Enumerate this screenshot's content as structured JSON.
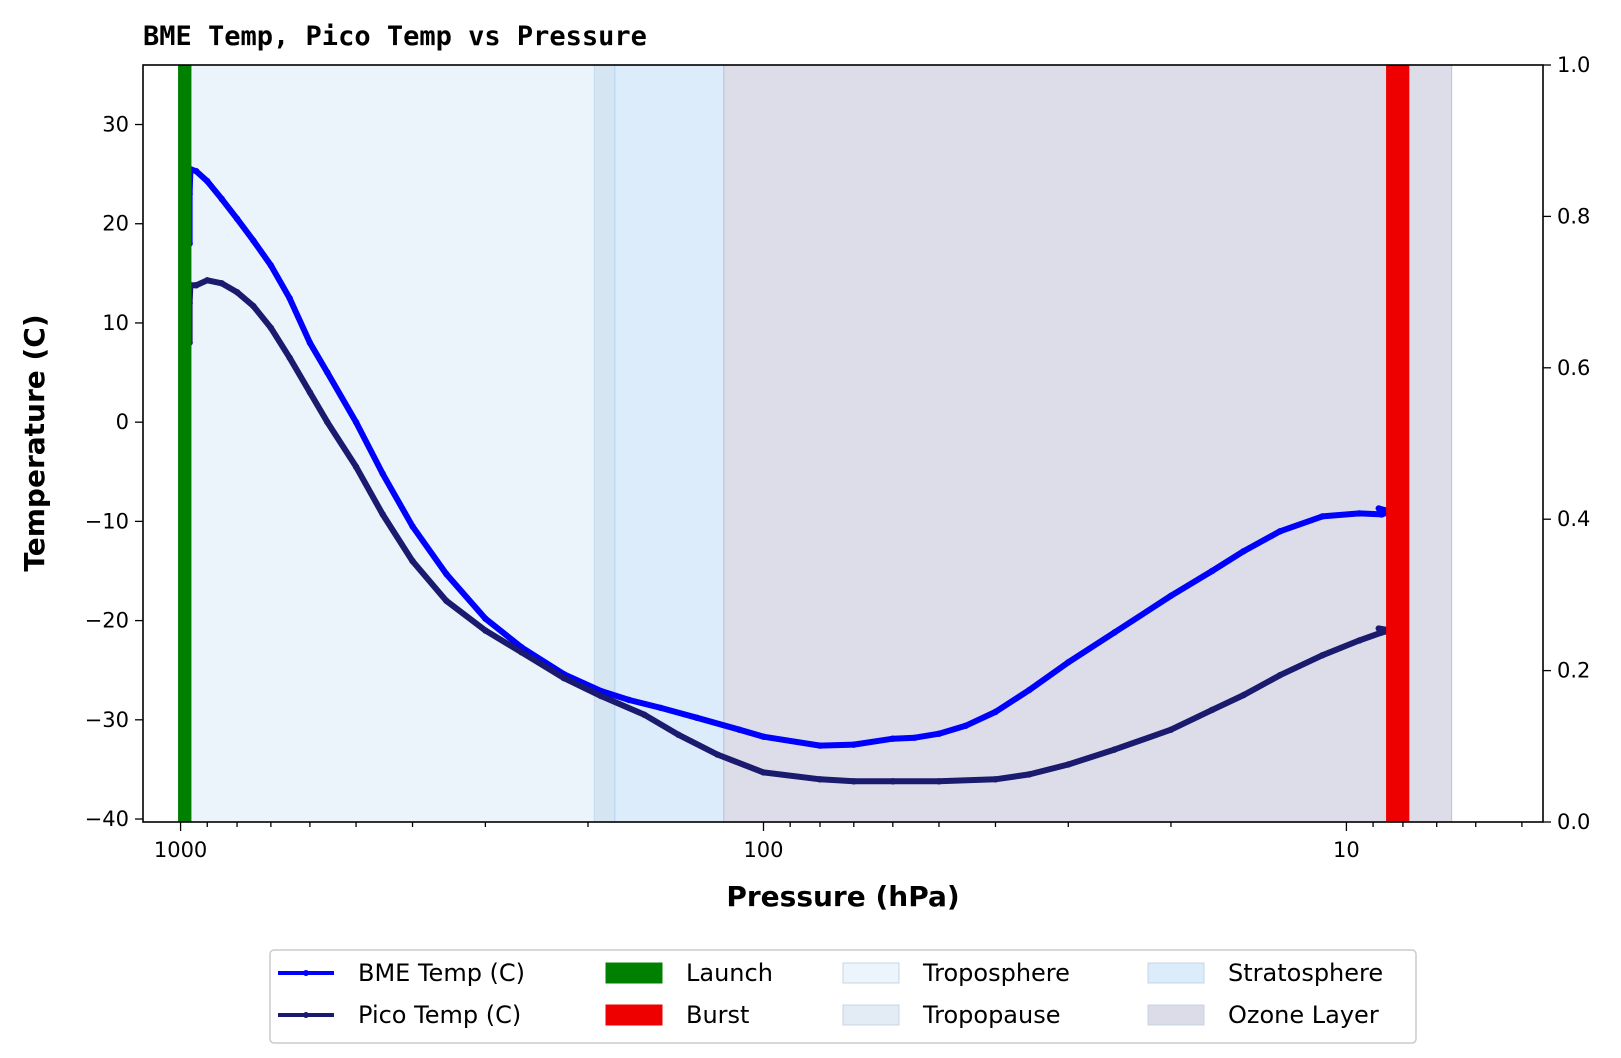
{
  "chart_data": {
    "type": "line",
    "title": "BME Temp, Pico Temp vs Pressure",
    "xlabel": "Pressure (hPa)",
    "ylabel": "Temperature (C)",
    "x_scale": "log",
    "x_inverted": true,
    "xlim": [
      1160,
      4.6
    ],
    "ylim": [
      -40.3,
      36
    ],
    "y2lim": [
      0,
      1
    ],
    "x_ticks": [
      {
        "value": 1000,
        "label": "1000"
      },
      {
        "value": 100,
        "label": "100"
      },
      {
        "value": 10,
        "label": "10"
      }
    ],
    "y_ticks": [
      {
        "value": 30,
        "label": "30"
      },
      {
        "value": 20,
        "label": "20"
      },
      {
        "value": 10,
        "label": "10"
      },
      {
        "value": 0,
        "label": "0"
      },
      {
        "value": -10,
        "label": "−10"
      },
      {
        "value": -20,
        "label": "−20"
      },
      {
        "value": -30,
        "label": "−30"
      },
      {
        "value": -40,
        "label": "−40"
      }
    ],
    "y2_ticks": [
      {
        "value": 0.0,
        "label": "0.0"
      },
      {
        "value": 0.2,
        "label": "0.2"
      },
      {
        "value": 0.4,
        "label": "0.4"
      },
      {
        "value": 0.6,
        "label": "0.6"
      },
      {
        "value": 0.8,
        "label": "0.8"
      },
      {
        "value": 1.0,
        "label": "1.0"
      }
    ],
    "grid": false,
    "legend_position": "bottom-center",
    "series": [
      {
        "name": "BME Temp (C)",
        "color": "#0000ff",
        "x": [
          965,
          965,
          962,
          940,
          900,
          850,
          800,
          750,
          700,
          650,
          600,
          560,
          500,
          450,
          400,
          350,
          300,
          260,
          220,
          190,
          170,
          150,
          130,
          110,
          100,
          80,
          70,
          60,
          55,
          50,
          45,
          40,
          35,
          30,
          25,
          20,
          17,
          15,
          13,
          11,
          9.5,
          8.7,
          8.4,
          8.8
        ],
        "y": [
          18,
          23,
          25.5,
          25.3,
          24.3,
          22.5,
          20.5,
          18.3,
          15.8,
          12.5,
          8,
          5,
          0,
          -5.2,
          -10.5,
          -15.3,
          -19.8,
          -22.7,
          -25.4,
          -27.1,
          -28,
          -28.8,
          -29.8,
          -31,
          -31.7,
          -32.6,
          -32.5,
          -31.9,
          -31.8,
          -31.4,
          -30.6,
          -29.2,
          -27,
          -24.2,
          -21.2,
          -17.5,
          -15,
          -13,
          -11,
          -9.5,
          -9.2,
          -9.3,
          -9,
          -8.7
        ]
      },
      {
        "name": "Pico Temp (C)",
        "color": "#1a1a6e",
        "x": [
          965,
          965,
          962,
          940,
          900,
          850,
          800,
          750,
          700,
          650,
          600,
          560,
          500,
          450,
          400,
          350,
          300,
          260,
          220,
          190,
          160,
          140,
          120,
          100,
          80,
          70,
          60,
          50,
          40,
          35,
          30,
          25,
          20,
          17,
          15,
          13,
          11,
          9.5,
          8.7,
          8.4,
          8.8
        ],
        "y": [
          8,
          12,
          13.8,
          13.8,
          14.3,
          14,
          13.1,
          11.7,
          9.5,
          6.5,
          3,
          0,
          -4.5,
          -9.3,
          -14,
          -18,
          -21,
          -23.2,
          -25.8,
          -27.6,
          -29.5,
          -31.5,
          -33.5,
          -35.3,
          -36,
          -36.2,
          -36.2,
          -36.2,
          -36,
          -35.5,
          -34.5,
          -33,
          -31,
          -29,
          -27.5,
          -25.5,
          -23.5,
          -22,
          -21.2,
          -21,
          -20.8
        ]
      }
    ],
    "bands": [
      {
        "name": "Troposphere",
        "color": "#dbebf8",
        "opacity": 0.55,
        "x_from": 965,
        "x_to": 195
      },
      {
        "name": "Tropopause",
        "color": "#c8dced",
        "opacity": 0.75,
        "x_from": 195,
        "x_to": 180
      },
      {
        "name": "Stratosphere",
        "color": "#b9d9f5",
        "opacity": 0.5,
        "x_from": 180,
        "x_to": 117
      },
      {
        "name": "Ozone Layer",
        "color": "#c6c6db",
        "opacity": 0.6,
        "x_from": 117,
        "x_to": 6.6
      }
    ],
    "markers": [
      {
        "name": "Launch",
        "color": "#008000",
        "x_from": 1010,
        "x_to": 958
      },
      {
        "name": "Burst",
        "color": "#ee0000",
        "x_from": 8.55,
        "x_to": 7.8
      }
    ],
    "legend": [
      {
        "label": "BME Temp (C)",
        "kind": "line",
        "color": "#0000ff"
      },
      {
        "label": "Pico Temp (C)",
        "kind": "line",
        "color": "#1a1a6e"
      },
      {
        "label": "Launch",
        "kind": "patch",
        "color": "#008000"
      },
      {
        "label": "Burst",
        "kind": "patch",
        "color": "#ee0000"
      },
      {
        "label": "Troposphere",
        "kind": "patch",
        "color": "#edf5fc"
      },
      {
        "label": "Tropopause",
        "kind": "patch",
        "color": "#e3ecf4"
      },
      {
        "label": "Stratosphere",
        "kind": "patch",
        "color": "#dbecfb"
      },
      {
        "label": "Ozone Layer",
        "kind": "patch",
        "color": "#dcdce8"
      }
    ]
  }
}
